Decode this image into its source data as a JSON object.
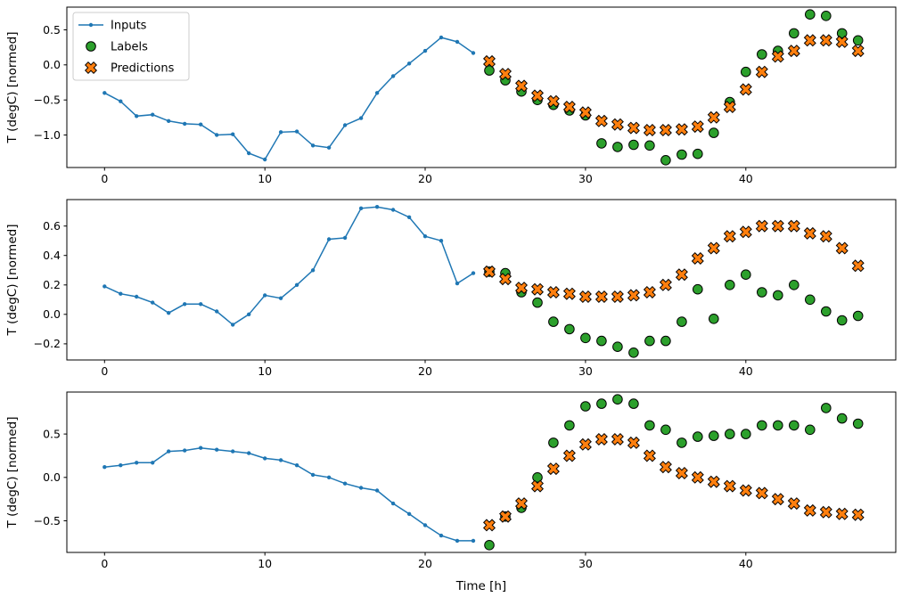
{
  "figure": {
    "xlabel": "Time [h]",
    "background": "#ffffff",
    "axis_color": "#000000",
    "legend": {
      "position": "upper left",
      "border_color": "#cccccc",
      "entries": [
        {
          "label": "Inputs",
          "marker": "line-dot",
          "color": "#1f77b4",
          "edge": "none"
        },
        {
          "label": "Labels",
          "marker": "circle",
          "color": "#2ca02c",
          "edge": "#000000"
        },
        {
          "label": "Predictions",
          "marker": "X",
          "color": "#ff7f0e",
          "edge": "#000000"
        }
      ]
    }
  },
  "chart_data": [
    {
      "type": "line",
      "subplot": 1,
      "ylabel": "T (degC) [normed]",
      "xticks": [
        0,
        10,
        20,
        30,
        40
      ],
      "yticks": [
        0.5,
        0.0,
        -0.5,
        -1.0
      ],
      "grid": false,
      "series": [
        {
          "name": "Inputs",
          "type": "line",
          "color": "#1f77b4",
          "x": [
            0,
            1,
            2,
            3,
            4,
            5,
            6,
            7,
            8,
            9,
            10,
            11,
            12,
            13,
            14,
            15,
            16,
            17,
            18,
            19,
            20,
            21,
            22,
            23
          ],
          "values": [
            -0.4,
            -0.52,
            -0.73,
            -0.71,
            -0.8,
            -0.84,
            -0.85,
            -1.0,
            -0.99,
            -1.26,
            -1.35,
            -0.96,
            -0.95,
            -1.15,
            -1.18,
            -0.86,
            -0.76,
            -0.4,
            -0.16,
            0.02,
            0.2,
            0.39,
            0.33,
            0.17
          ]
        },
        {
          "name": "Labels",
          "type": "scatter-circle",
          "color": "#2ca02c",
          "x": [
            24,
            25,
            26,
            27,
            28,
            29,
            30,
            31,
            32,
            33,
            34,
            35,
            36,
            37,
            38,
            39,
            40,
            41,
            42,
            43,
            44,
            45,
            46,
            47
          ],
          "values": [
            -0.08,
            -0.22,
            -0.38,
            -0.5,
            -0.57,
            -0.65,
            -0.72,
            -1.12,
            -1.17,
            -1.14,
            -1.15,
            -1.36,
            -1.28,
            -1.27,
            -0.97,
            -0.53,
            -0.1,
            0.15,
            0.2,
            0.45,
            0.72,
            0.7,
            0.45,
            0.35
          ]
        },
        {
          "name": "Predictions",
          "type": "scatter-X",
          "color": "#ff7f0e",
          "x": [
            24,
            25,
            26,
            27,
            28,
            29,
            30,
            31,
            32,
            33,
            34,
            35,
            36,
            37,
            38,
            39,
            40,
            41,
            42,
            43,
            44,
            45,
            46,
            47
          ],
          "values": [
            0.05,
            -0.13,
            -0.3,
            -0.44,
            -0.52,
            -0.6,
            -0.68,
            -0.8,
            -0.85,
            -0.9,
            -0.93,
            -0.93,
            -0.92,
            -0.88,
            -0.75,
            -0.6,
            -0.35,
            -0.1,
            0.12,
            0.2,
            0.35,
            0.35,
            0.33,
            0.2
          ]
        }
      ]
    },
    {
      "type": "line",
      "subplot": 2,
      "ylabel": "T (degC) [normed]",
      "xticks": [
        0,
        10,
        20,
        30,
        40
      ],
      "yticks": [
        0.6,
        0.4,
        0.2,
        0.0,
        -0.2
      ],
      "grid": false,
      "series": [
        {
          "name": "Inputs",
          "type": "line",
          "color": "#1f77b4",
          "x": [
            0,
            1,
            2,
            3,
            4,
            5,
            6,
            7,
            8,
            9,
            10,
            11,
            12,
            13,
            14,
            15,
            16,
            17,
            18,
            19,
            20,
            21,
            22,
            23
          ],
          "values": [
            0.19,
            0.14,
            0.12,
            0.08,
            0.01,
            0.07,
            0.07,
            0.02,
            -0.07,
            0.0,
            0.13,
            0.11,
            0.2,
            0.3,
            0.51,
            0.52,
            0.72,
            0.73,
            0.71,
            0.66,
            0.53,
            0.5,
            0.21,
            0.28
          ]
        },
        {
          "name": "Labels",
          "type": "scatter-circle",
          "color": "#2ca02c",
          "x": [
            24,
            25,
            26,
            27,
            28,
            29,
            30,
            31,
            32,
            33,
            34,
            35,
            36,
            37,
            38,
            39,
            40,
            41,
            42,
            43,
            44,
            45,
            46,
            47
          ],
          "values": [
            0.29,
            0.28,
            0.15,
            0.08,
            -0.05,
            -0.1,
            -0.16,
            -0.18,
            -0.22,
            -0.26,
            -0.18,
            -0.18,
            -0.05,
            0.17,
            -0.03,
            0.2,
            0.27,
            0.15,
            0.13,
            0.2,
            0.1,
            0.02,
            -0.04,
            -0.01
          ]
        },
        {
          "name": "Predictions",
          "type": "scatter-X",
          "color": "#ff7f0e",
          "x": [
            24,
            25,
            26,
            27,
            28,
            29,
            30,
            31,
            32,
            33,
            34,
            35,
            36,
            37,
            38,
            39,
            40,
            41,
            42,
            43,
            44,
            45,
            46,
            47
          ],
          "values": [
            0.29,
            0.24,
            0.18,
            0.17,
            0.15,
            0.14,
            0.12,
            0.12,
            0.12,
            0.13,
            0.15,
            0.2,
            0.27,
            0.38,
            0.45,
            0.53,
            0.56,
            0.6,
            0.6,
            0.6,
            0.55,
            0.53,
            0.45,
            0.33
          ]
        }
      ]
    },
    {
      "type": "line",
      "subplot": 3,
      "ylabel": "T (degC) [normed]",
      "xticks": [
        0,
        10,
        20,
        30,
        40
      ],
      "yticks": [
        0.5,
        0.0,
        -0.5
      ],
      "grid": false,
      "series": [
        {
          "name": "Inputs",
          "type": "line",
          "color": "#1f77b4",
          "x": [
            0,
            1,
            2,
            3,
            4,
            5,
            6,
            7,
            8,
            9,
            10,
            11,
            12,
            13,
            14,
            15,
            16,
            17,
            18,
            19,
            20,
            21,
            22,
            23
          ],
          "values": [
            0.12,
            0.14,
            0.17,
            0.17,
            0.3,
            0.31,
            0.34,
            0.32,
            0.3,
            0.28,
            0.22,
            0.2,
            0.14,
            0.03,
            0.0,
            -0.07,
            -0.12,
            -0.15,
            -0.3,
            -0.42,
            -0.55,
            -0.67,
            -0.73,
            -0.73
          ]
        },
        {
          "name": "Labels",
          "type": "scatter-circle",
          "color": "#2ca02c",
          "x": [
            24,
            25,
            26,
            27,
            28,
            29,
            30,
            31,
            32,
            33,
            34,
            35,
            36,
            37,
            38,
            39,
            40,
            41,
            42,
            43,
            44,
            45,
            46,
            47
          ],
          "values": [
            -0.78,
            -0.45,
            -0.35,
            0.0,
            0.4,
            0.6,
            0.82,
            0.85,
            0.9,
            0.85,
            0.6,
            0.55,
            0.4,
            0.47,
            0.48,
            0.5,
            0.5,
            0.6,
            0.6,
            0.6,
            0.55,
            0.8,
            0.68,
            0.62
          ]
        },
        {
          "name": "Predictions",
          "type": "scatter-X",
          "color": "#ff7f0e",
          "x": [
            24,
            25,
            26,
            27,
            28,
            29,
            30,
            31,
            32,
            33,
            34,
            35,
            36,
            37,
            38,
            39,
            40,
            41,
            42,
            43,
            44,
            45,
            46,
            47
          ],
          "values": [
            -0.55,
            -0.45,
            -0.3,
            -0.1,
            0.1,
            0.25,
            0.38,
            0.44,
            0.44,
            0.4,
            0.25,
            0.12,
            0.05,
            0.0,
            -0.05,
            -0.1,
            -0.15,
            -0.18,
            -0.25,
            -0.3,
            -0.38,
            -0.4,
            -0.42,
            -0.43
          ]
        }
      ]
    }
  ]
}
